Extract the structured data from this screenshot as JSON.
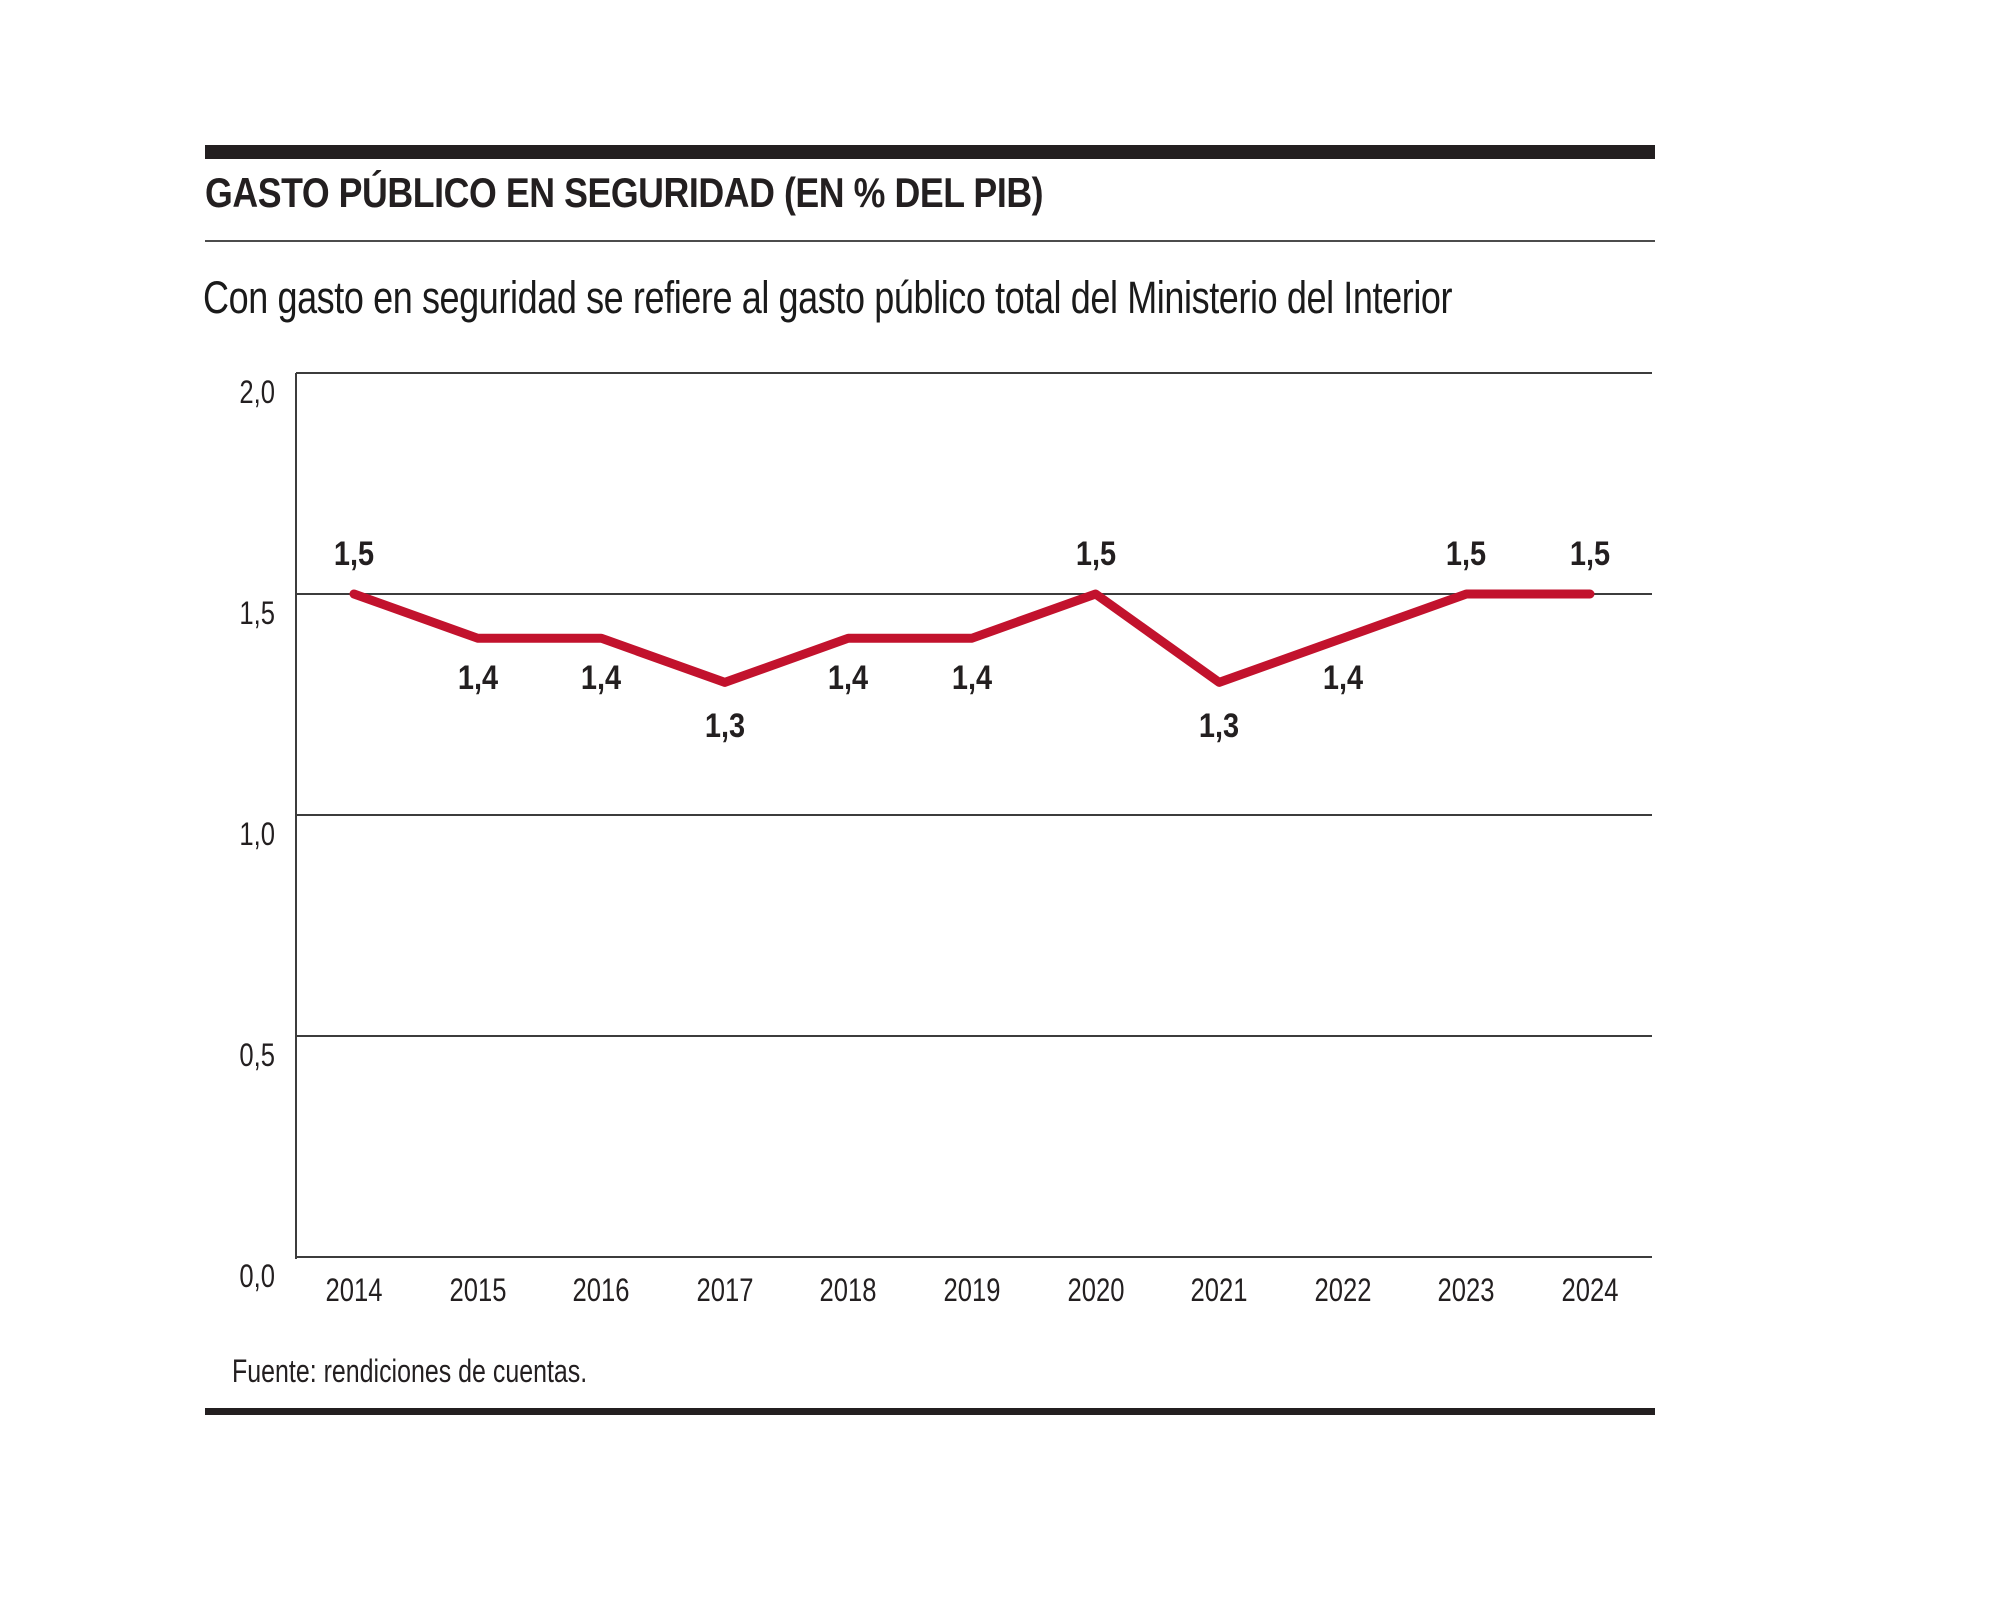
{
  "header": {
    "title": "GASTO PÚBLICO EN SEGURIDAD (EN % DEL PIB)",
    "subtitle": "Con gasto en seguridad se refiere al gasto público total del Ministerio del Interior"
  },
  "footer": {
    "source": "Fuente: rendiciones de cuentas."
  },
  "colors": {
    "line": "#c2122d",
    "text": "#231f20",
    "grid": "#3c3c3c",
    "rule": "#231f20"
  },
  "chart_data": {
    "type": "line",
    "title": "Gasto público en seguridad (en % del PIB)",
    "categories": [
      "2014",
      "2015",
      "2016",
      "2017",
      "2018",
      "2019",
      "2020",
      "2021",
      "2022",
      "2023",
      "2024"
    ],
    "values": [
      1.5,
      1.4,
      1.4,
      1.3,
      1.4,
      1.4,
      1.5,
      1.3,
      1.4,
      1.5,
      1.5
    ],
    "point_labels": [
      "1,5",
      "1,4",
      "1,4",
      "1,3",
      "1,4",
      "1,4",
      "1,5",
      "1,3",
      "1,4",
      "1,5",
      "1,5"
    ],
    "label_position": [
      "above",
      "below",
      "below",
      "below",
      "below",
      "below",
      "above",
      "below",
      "below",
      "above",
      "above"
    ],
    "y_ticks": [
      {
        "label": "2,0",
        "value": 2.0
      },
      {
        "label": "1,5",
        "value": 1.5
      },
      {
        "label": "1,0",
        "value": 1.0
      },
      {
        "label": "0,5",
        "value": 0.5
      },
      {
        "label": "0,0",
        "value": 0.0
      }
    ],
    "ylim": [
      0,
      2
    ],
    "xlabel": "",
    "ylabel": "",
    "grid": true,
    "legend": "none",
    "line_width": 9
  }
}
